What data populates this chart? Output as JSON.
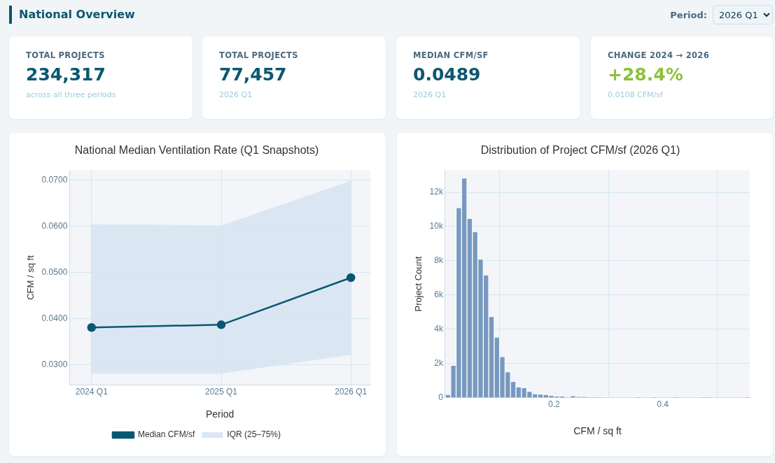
{
  "chart_data": [
    {
      "type": "other",
      "title": "National Overview",
      "annotations": [
        "Period:",
        "2026 Q1"
      ]
    },
    {
      "type": "other",
      "title": "TOTAL PROJECTS",
      "subtitle": "234,317",
      "annotations": [
        "across all three periods"
      ],
      "color": "#0b5770"
    },
    {
      "type": "other",
      "title": "TOTAL PROJECTS",
      "subtitle": "77,457",
      "annotations": [
        "2026 Q1"
      ],
      "color": "#0b5770"
    },
    {
      "type": "other",
      "title": "MEDIAN CFM/SF",
      "subtitle": "0.0489",
      "annotations": [
        "2026 Q1"
      ],
      "color": "#0b5770"
    },
    {
      "type": "other",
      "title": "CHANGE 2024 → 2026",
      "subtitle": "+28.4%",
      "annotations": [
        "0.0108 CFM/sf"
      ],
      "color": "#8dc03f"
    },
    {
      "type": "line",
      "title": "National Median Ventilation Rate (Q1 Snapshots)",
      "xlabel": "Period",
      "ylabel": "CFM / sq ft",
      "categories": [
        "2024 Q1",
        "2025 Q1",
        "2026 Q1"
      ],
      "series": [
        {
          "name": "Median CFM/sf",
          "color": "#0b5770",
          "values": [
            0.0381,
            0.0387,
            0.0489
          ]
        },
        {
          "name": "IQR (25–75%)",
          "type": "area",
          "color": "#d6e4f1",
          "values": [
            null,
            null,
            null
          ],
          "lower": [
            0.0281,
            0.0281,
            0.0322
          ],
          "upper": [
            0.0605,
            0.0602,
            0.0699
          ]
        }
      ],
      "ylim": [
        0.0256,
        0.0722
      ],
      "yticks": [
        {
          "value": 0.03,
          "label": "0.0300"
        },
        {
          "value": 0.04,
          "label": "0.0400"
        },
        {
          "value": 0.05,
          "label": "0.0500"
        },
        {
          "value": 0.06,
          "label": "0.0600"
        },
        {
          "value": 0.07,
          "label": "0.0700"
        }
      ],
      "grid": true,
      "legend": "bottom",
      "marker": "circle",
      "line_style": "solid"
    },
    {
      "type": "histogram",
      "title": "Distribution of Project CFM/sf (2026 Q1)",
      "xlabel": "CFM / sq ft",
      "ylabel": "Project Count",
      "color": "#6a8fb8",
      "bins": [
        0,
        0.01,
        0.02,
        0.03,
        0.04,
        0.05,
        0.06,
        0.07,
        0.08,
        0.09,
        0.1,
        0.11,
        0.12,
        0.13,
        0.14,
        0.15,
        0.16,
        0.17,
        0.18,
        0.19,
        0.2,
        0.21,
        0.22,
        0.23,
        0.24,
        0.25,
        0.26,
        0.27,
        0.28,
        0.29,
        0.3,
        0.31,
        0.32,
        0.33,
        0.34,
        0.35,
        0.36,
        0.37,
        0.38,
        0.39,
        0.4,
        0.41,
        0.42,
        0.43,
        0.44,
        0.45,
        0.46,
        0.47,
        0.48,
        0.49,
        0.5,
        0.51,
        0.52,
        0.53,
        0.54,
        0.55,
        0.56
      ],
      "values": [
        170,
        1870,
        11080,
        12810,
        10450,
        9670,
        8070,
        7150,
        4720,
        3520,
        2380,
        1490,
        930,
        600,
        560,
        350,
        210,
        190,
        170,
        110,
        70,
        70,
        30,
        90,
        50,
        50,
        30,
        30,
        30,
        20,
        20,
        20,
        20,
        0,
        0,
        10,
        0,
        0,
        10,
        0,
        0,
        0,
        10,
        0,
        0,
        0,
        0,
        10,
        10,
        0,
        0,
        0,
        0,
        0,
        0,
        10
      ],
      "xlim": [
        0,
        0.56
      ],
      "xticks": [
        0.2,
        0.4
      ],
      "ylim": [
        0,
        13300
      ],
      "yticks": [
        0,
        {
          "value": 2000,
          "label": "2k"
        },
        {
          "value": 4000,
          "label": "4k"
        },
        {
          "value": 6000,
          "label": "6k"
        },
        {
          "value": 8000,
          "label": "8k"
        },
        {
          "value": 10000,
          "label": "10k"
        },
        {
          "value": 12000,
          "label": "12k"
        }
      ],
      "grid": true
    }
  ]
}
